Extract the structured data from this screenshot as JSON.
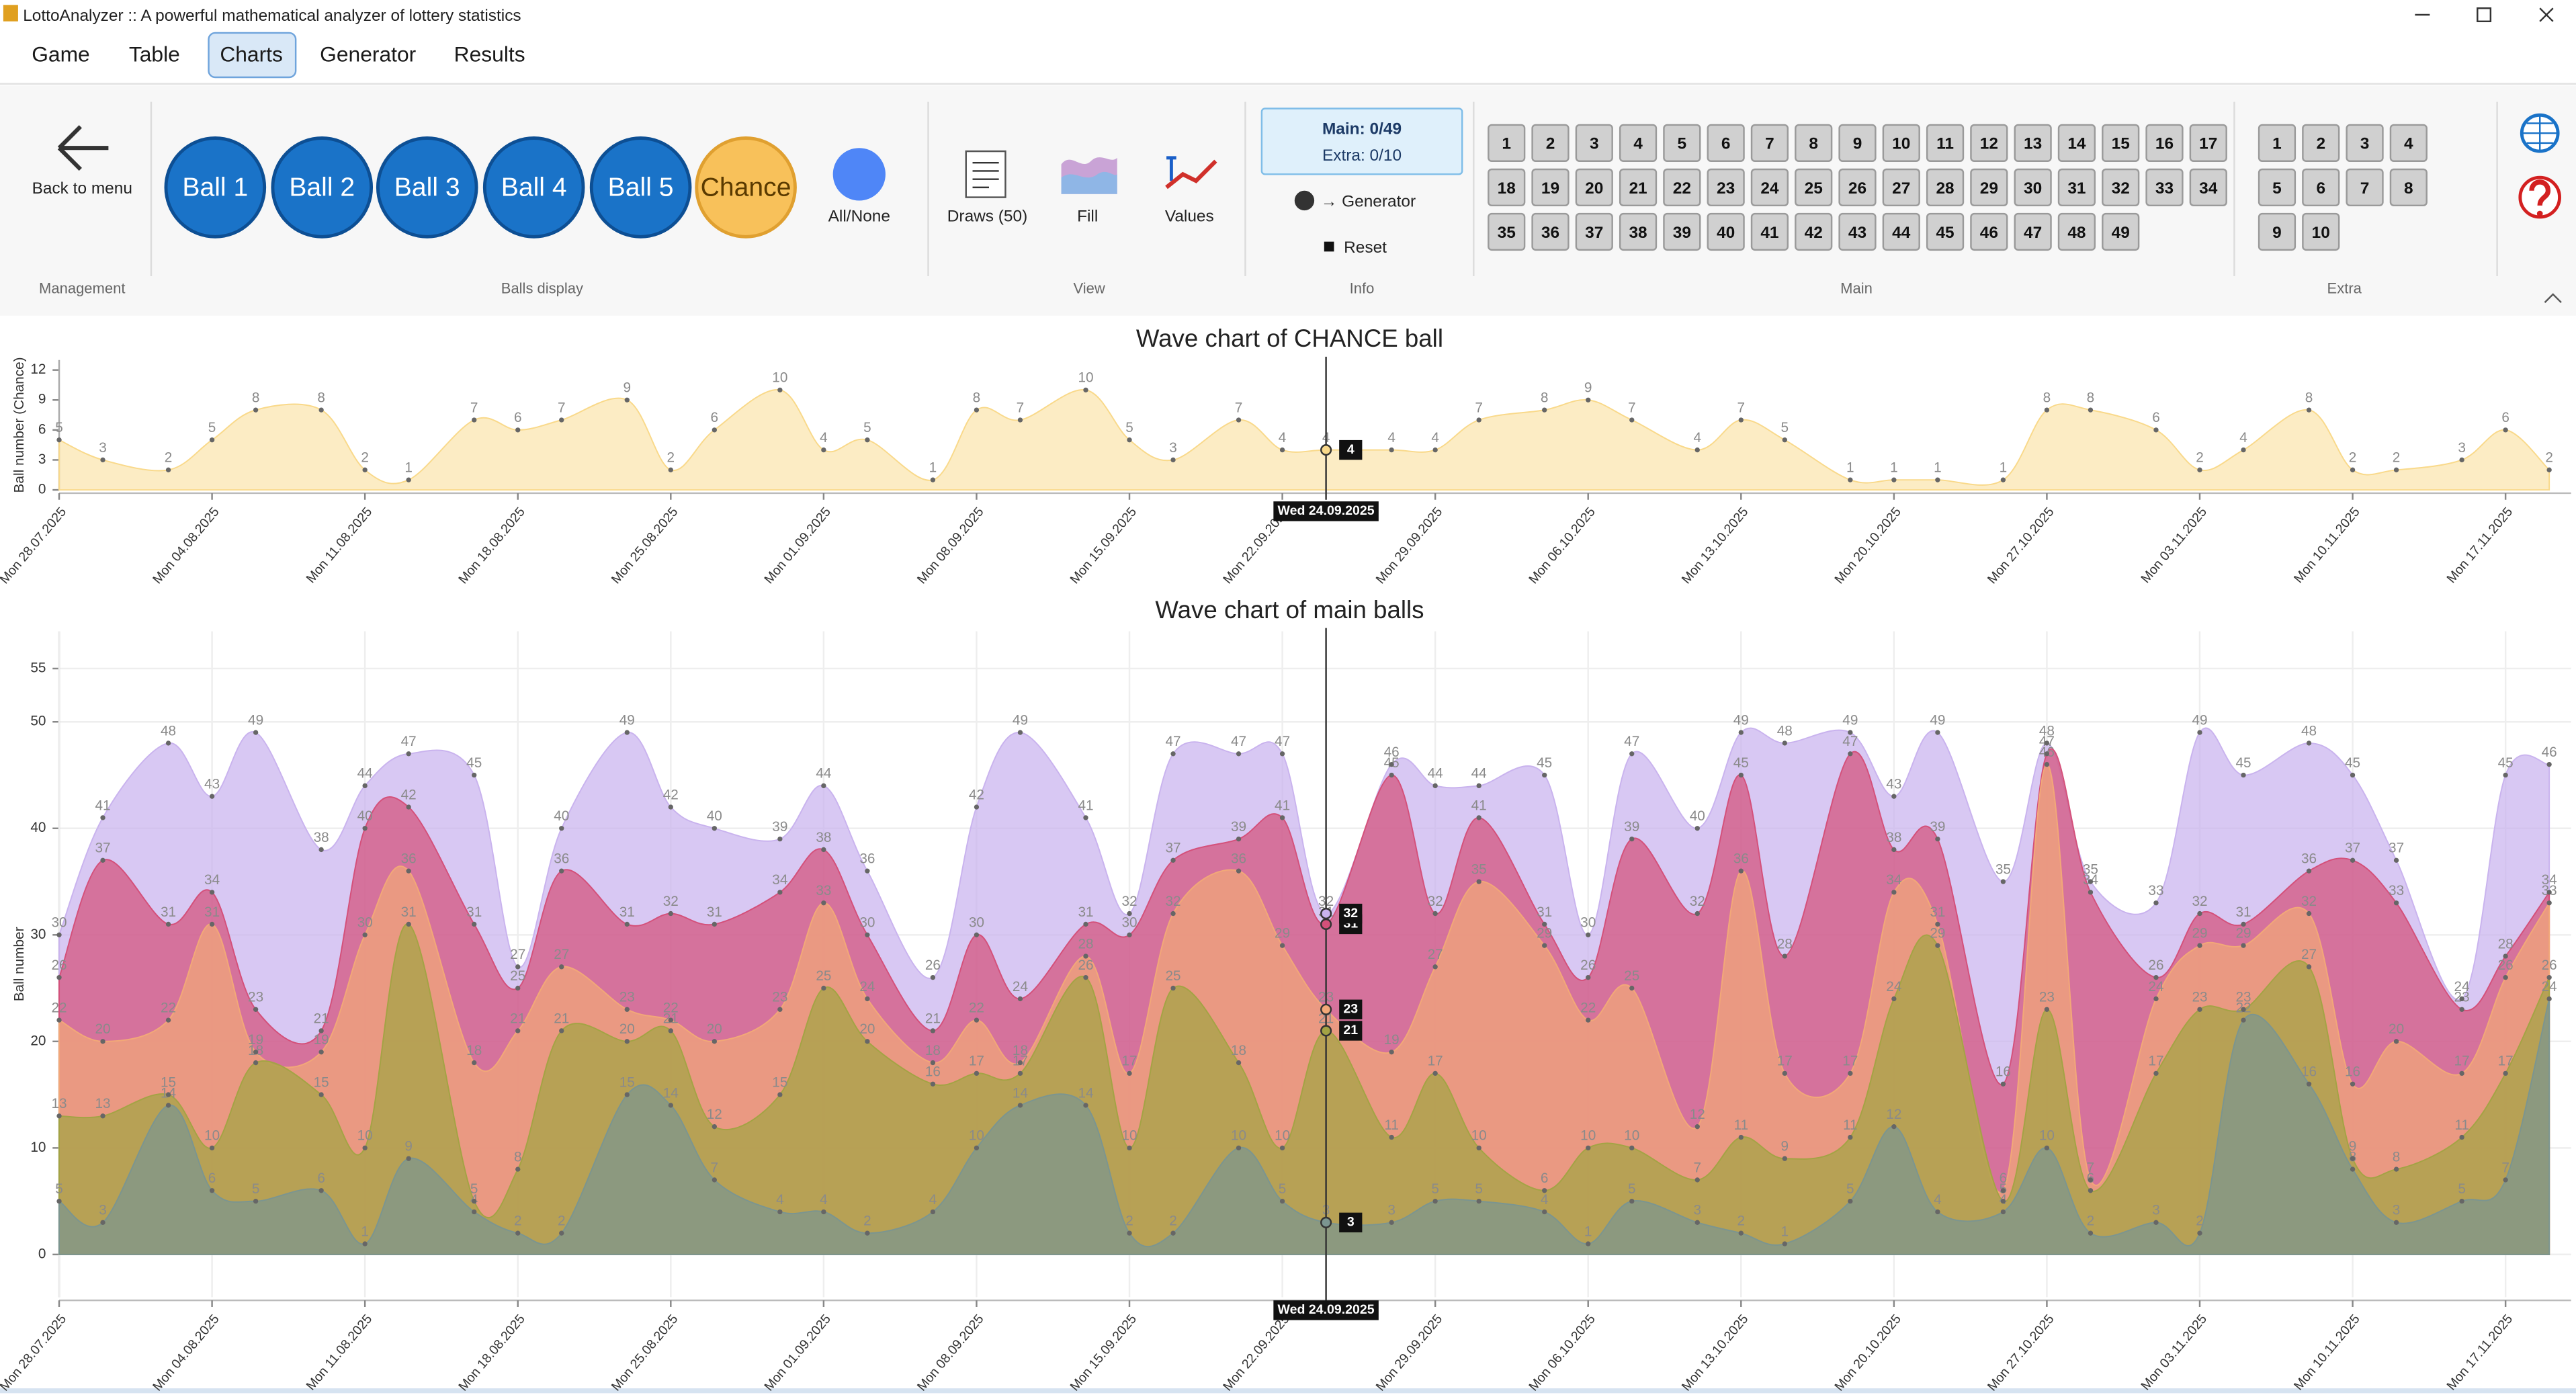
{
  "window": {
    "title": "LottoAnalyzer :: A powerful mathematical analyzer of lottery statistics"
  },
  "menu": [
    "Game",
    "Table",
    "Charts",
    "Generator",
    "Results"
  ],
  "toolbar": {
    "back": "Back to menu",
    "management": "Management",
    "all_none": "All/None",
    "balls_display": "Balls display",
    "draws": "Draws (50)",
    "fill": "Fill",
    "values": "Values",
    "view": "View",
    "info_main": "Main: 0/49",
    "info_extra": "Extra: 0/10",
    "to_generator": "→ Generator",
    "reset": "Reset",
    "info": "Info",
    "main_numbers": [
      1,
      2,
      3,
      4,
      5,
      6,
      7,
      8,
      9,
      10,
      11,
      12,
      13,
      14,
      15,
      16,
      17,
      18,
      19,
      20,
      21,
      22,
      23,
      24,
      25,
      26,
      27,
      28,
      29,
      30,
      31,
      32,
      33,
      34,
      35,
      36,
      37,
      38,
      39,
      40,
      41,
      42,
      43,
      44,
      45,
      46,
      47,
      48,
      49
    ],
    "main": "Main",
    "extra_numbers": [
      1,
      2,
      3,
      4,
      5,
      6,
      7,
      8,
      9,
      10
    ],
    "extra": "Extra"
  },
  "cursor": {
    "x": "2025-09-24",
    "label": "Wed 24.09.2025"
  },
  "chart_data": [
    {
      "type": "area",
      "title": "Wave chart of CHANCE ball",
      "y_label": "Ball number (Chance)",
      "x": [
        "2025-07-28",
        "2025-07-30",
        "2025-08-02",
        "2025-08-04",
        "2025-08-06",
        "2025-08-09",
        "2025-08-11",
        "2025-08-13",
        "2025-08-16",
        "2025-08-18",
        "2025-08-20",
        "2025-08-23",
        "2025-08-25",
        "2025-08-27",
        "2025-08-30",
        "2025-09-01",
        "2025-09-03",
        "2025-09-06",
        "2025-09-08",
        "2025-09-10",
        "2025-09-13",
        "2025-09-15",
        "2025-09-17",
        "2025-09-20",
        "2025-09-22",
        "2025-09-24",
        "2025-09-27",
        "2025-09-29",
        "2025-10-01",
        "2025-10-04",
        "2025-10-06",
        "2025-10-08",
        "2025-10-11",
        "2025-10-13",
        "2025-10-15",
        "2025-10-18",
        "2025-10-20",
        "2025-10-22",
        "2025-10-25",
        "2025-10-27",
        "2025-10-29",
        "2025-11-01",
        "2025-11-03",
        "2025-11-05",
        "2025-11-08",
        "2025-11-10",
        "2025-11-12",
        "2025-11-15",
        "2025-11-17",
        "2025-11-19"
      ],
      "xlim": [
        "2025-07-28",
        "2025-11-20"
      ],
      "xticks": [
        {
          "value": "2025-07-28",
          "label": "Mon 28.07.2025"
        },
        {
          "value": "2025-08-04",
          "label": "Mon 04.08.2025"
        },
        {
          "value": "2025-08-11",
          "label": "Mon 11.08.2025"
        },
        {
          "value": "2025-08-18",
          "label": "Mon 18.08.2025"
        },
        {
          "value": "2025-08-25",
          "label": "Mon 25.08.2025"
        },
        {
          "value": "2025-09-01",
          "label": "Mon 01.09.2025"
        },
        {
          "value": "2025-09-08",
          "label": "Mon 08.09.2025"
        },
        {
          "value": "2025-09-15",
          "label": "Mon 15.09.2025"
        },
        {
          "value": "2025-09-22",
          "label": "Mon 22.09.2025"
        },
        {
          "value": "2025-09-29",
          "label": "Mon 29.09.2025"
        },
        {
          "value": "2025-10-06",
          "label": "Mon 06.10.2025"
        },
        {
          "value": "2025-10-13",
          "label": "Mon 13.10.2025"
        },
        {
          "value": "2025-10-20",
          "label": "Mon 20.10.2025"
        },
        {
          "value": "2025-10-27",
          "label": "Mon 27.10.2025"
        },
        {
          "value": "2025-11-03",
          "label": "Mon 03.11.2025"
        },
        {
          "value": "2025-11-10",
          "label": "Mon 10.11.2025"
        },
        {
          "value": "2025-11-17",
          "label": "Mon 17.11.2025"
        }
      ],
      "ylim": [
        0,
        13
      ],
      "yticks": [
        0,
        3,
        6,
        9,
        12
      ],
      "grid": false,
      "series": [
        {
          "name": "Chance",
          "color": "#f9d98a",
          "values": [
            5,
            3,
            2,
            5,
            8,
            8,
            2,
            1,
            7,
            6,
            7,
            9,
            2,
            6,
            10,
            4,
            5,
            1,
            8,
            7,
            10,
            5,
            3,
            7,
            4,
            4,
            4,
            4,
            7,
            8,
            9,
            7,
            4,
            7,
            5,
            1,
            1,
            1,
            1,
            8,
            8,
            6,
            2,
            4,
            8,
            2,
            2,
            3,
            6,
            2
          ]
        }
      ]
    },
    {
      "type": "area",
      "title": "Wave chart of main balls",
      "y_label": "Ball number",
      "x": [
        "2025-07-28",
        "2025-07-30",
        "2025-08-02",
        "2025-08-04",
        "2025-08-06",
        "2025-08-09",
        "2025-08-11",
        "2025-08-13",
        "2025-08-16",
        "2025-08-18",
        "2025-08-20",
        "2025-08-23",
        "2025-08-25",
        "2025-08-27",
        "2025-08-30",
        "2025-09-01",
        "2025-09-03",
        "2025-09-06",
        "2025-09-08",
        "2025-09-10",
        "2025-09-13",
        "2025-09-15",
        "2025-09-17",
        "2025-09-20",
        "2025-09-22",
        "2025-09-24",
        "2025-09-27",
        "2025-09-29",
        "2025-10-01",
        "2025-10-04",
        "2025-10-06",
        "2025-10-08",
        "2025-10-11",
        "2025-10-13",
        "2025-10-15",
        "2025-10-18",
        "2025-10-20",
        "2025-10-22",
        "2025-10-25",
        "2025-10-27",
        "2025-10-29",
        "2025-11-01",
        "2025-11-03",
        "2025-11-05",
        "2025-11-08",
        "2025-11-10",
        "2025-11-12",
        "2025-11-15",
        "2025-11-17",
        "2025-11-19"
      ],
      "xlim": [
        "2025-07-28",
        "2025-11-20"
      ],
      "xticks": [
        {
          "value": "2025-07-28",
          "label": "Mon 28.07.2025"
        },
        {
          "value": "2025-08-04",
          "label": "Mon 04.08.2025"
        },
        {
          "value": "2025-08-11",
          "label": "Mon 11.08.2025"
        },
        {
          "value": "2025-08-18",
          "label": "Mon 18.08.2025"
        },
        {
          "value": "2025-08-25",
          "label": "Mon 25.08.2025"
        },
        {
          "value": "2025-09-01",
          "label": "Mon 01.09.2025"
        },
        {
          "value": "2025-09-08",
          "label": "Mon 08.09.2025"
        },
        {
          "value": "2025-09-15",
          "label": "Mon 15.09.2025"
        },
        {
          "value": "2025-09-22",
          "label": "Mon 22.09.2025"
        },
        {
          "value": "2025-09-29",
          "label": "Mon 29.09.2025"
        },
        {
          "value": "2025-10-06",
          "label": "Mon 06.10.2025"
        },
        {
          "value": "2025-10-13",
          "label": "Mon 13.10.2025"
        },
        {
          "value": "2025-10-20",
          "label": "Mon 20.10.2025"
        },
        {
          "value": "2025-10-27",
          "label": "Mon 27.10.2025"
        },
        {
          "value": "2025-11-03",
          "label": "Mon 03.11.2025"
        },
        {
          "value": "2025-11-10",
          "label": "Mon 10.11.2025"
        },
        {
          "value": "2025-11-17",
          "label": "Mon 17.11.2025"
        }
      ],
      "ylim": [
        -4,
        58.5
      ],
      "yticks": [
        0,
        10,
        20,
        30,
        40,
        50,
        55
      ],
      "grid": true,
      "series": [
        {
          "name": "Ball 1",
          "color": "#7b9590",
          "values": [
            5,
            3,
            14,
            6,
            5,
            6,
            1,
            9,
            4,
            2,
            2,
            15,
            14,
            7,
            4,
            4,
            2,
            4,
            10,
            14,
            14,
            2,
            2,
            10,
            5,
            3,
            3,
            5,
            5,
            4,
            1,
            5,
            3,
            2,
            1,
            5,
            12,
            4,
            4,
            10,
            2,
            3,
            2,
            22,
            16,
            8,
            3,
            5,
            7,
            24
          ]
        },
        {
          "name": "Ball 2",
          "color": "#a3a344",
          "values": [
            13,
            13,
            15,
            10,
            18,
            15,
            10,
            31,
            5,
            8,
            21,
            20,
            21,
            12,
            15,
            25,
            20,
            16,
            17,
            17,
            26,
            10,
            25,
            18,
            10,
            21,
            11,
            17,
            10,
            6,
            10,
            10,
            7,
            11,
            9,
            11,
            24,
            29,
            5,
            23,
            6,
            17,
            23,
            23,
            27,
            9,
            8,
            11,
            17,
            26
          ]
        },
        {
          "name": "Ball 3",
          "color": "#f2a878",
          "values": [
            22,
            20,
            22,
            31,
            19,
            19,
            30,
            36,
            18,
            21,
            27,
            23,
            22,
            20,
            23,
            33,
            24,
            18,
            22,
            18,
            28,
            17,
            32,
            36,
            29,
            23,
            19,
            27,
            35,
            29,
            22,
            25,
            12,
            36,
            17,
            17,
            34,
            31,
            6,
            46,
            7,
            24,
            29,
            29,
            32,
            16,
            20,
            17,
            26,
            33
          ]
        },
        {
          "name": "Ball 4",
          "color": "#d4507a",
          "values": [
            26,
            37,
            31,
            34,
            23,
            21,
            40,
            42,
            31,
            25,
            36,
            31,
            32,
            31,
            34,
            38,
            30,
            21,
            30,
            24,
            31,
            30,
            37,
            39,
            41,
            31,
            45,
            32,
            41,
            31,
            26,
            39,
            32,
            45,
            28,
            47,
            38,
            39,
            16,
            47,
            34,
            26,
            32,
            31,
            36,
            37,
            33,
            23,
            28,
            34
          ]
        },
        {
          "name": "Ball 5",
          "color": "#c9b3ee",
          "values": [
            30,
            41,
            48,
            43,
            49,
            38,
            44,
            47,
            45,
            27,
            40,
            49,
            42,
            40,
            39,
            44,
            36,
            26,
            42,
            49,
            41,
            32,
            47,
            47,
            47,
            32,
            46,
            44,
            44,
            45,
            30,
            47,
            40,
            49,
            48,
            49,
            43,
            49,
            35,
            48,
            35,
            33,
            49,
            45,
            48,
            45,
            37,
            24,
            45,
            46
          ]
        }
      ]
    }
  ]
}
